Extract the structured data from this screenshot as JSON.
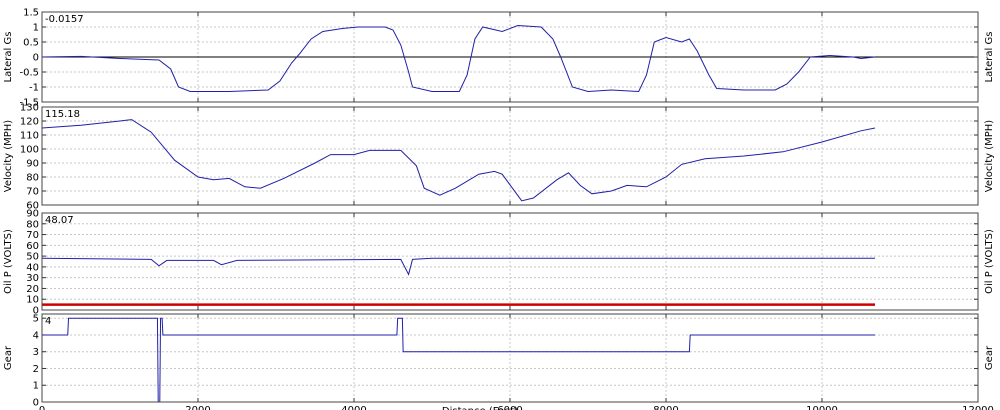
{
  "chart_data": [
    {
      "type": "line",
      "ylabel": "Lateral Gs",
      "readout": -0.0157,
      "xlim": [
        0,
        12000
      ],
      "xticks": [
        0,
        2000,
        4000,
        6000,
        8000,
        10000,
        12000
      ],
      "ylim": [
        -1.5,
        1.5
      ],
      "yticks": [
        -1.5,
        -1,
        -0.5,
        0,
        0.5,
        1,
        1.5
      ],
      "grid": true,
      "x": [
        0,
        500,
        1000,
        1500,
        1650,
        1750,
        1900,
        2400,
        2900,
        3050,
        3200,
        3300,
        3450,
        3600,
        3850,
        4050,
        4400,
        4500,
        4600,
        4700,
        4750,
        5000,
        5350,
        5450,
        5550,
        5650,
        5900,
        6100,
        6400,
        6550,
        6650,
        6800,
        7000,
        7300,
        7650,
        7750,
        7850,
        8000,
        8200,
        8300,
        8400,
        8550,
        8650,
        9000,
        9400,
        9550,
        9700,
        9850,
        10100,
        10400,
        10500,
        10680
      ],
      "series": [
        {
          "color": "#2020a8",
          "values": [
            0,
            0.02,
            -0.05,
            -0.1,
            -0.4,
            -1.0,
            -1.15,
            -1.15,
            -1.1,
            -0.8,
            -0.2,
            0.1,
            0.6,
            0.85,
            0.95,
            1.0,
            1.0,
            0.9,
            0.4,
            -0.5,
            -1.0,
            -1.15,
            -1.15,
            -0.6,
            0.6,
            1.0,
            0.85,
            1.05,
            1.0,
            0.6,
            0.0,
            -1.0,
            -1.15,
            -1.1,
            -1.15,
            -0.6,
            0.5,
            0.65,
            0.5,
            0.6,
            0.2,
            -0.6,
            -1.05,
            -1.1,
            -1.1,
            -0.9,
            -0.5,
            0.0,
            0.05,
            0.0,
            -0.05,
            0.0
          ]
        }
      ]
    },
    {
      "type": "line",
      "ylabel": "Velocity (MPH)",
      "readout": 115.18,
      "xlim": [
        0,
        12000
      ],
      "xticks": [
        0,
        2000,
        4000,
        6000,
        8000,
        10000,
        12000
      ],
      "ylim": [
        60,
        130
      ],
      "yticks": [
        60,
        70,
        80,
        90,
        100,
        110,
        120,
        130
      ],
      "grid": true,
      "x": [
        0,
        500,
        1000,
        1150,
        1400,
        1700,
        2000,
        2200,
        2400,
        2600,
        2800,
        3100,
        3500,
        3700,
        4000,
        4200,
        4600,
        4800,
        4900,
        5100,
        5300,
        5600,
        5800,
        5900,
        6150,
        6300,
        6600,
        6750,
        6900,
        7050,
        7300,
        7500,
        7750,
        8000,
        8200,
        8500,
        9000,
        9500,
        10000,
        10500,
        10680
      ],
      "series": [
        {
          "color": "#2020a8",
          "values": [
            115,
            117,
            120,
            121,
            112,
            92,
            80,
            78,
            79,
            73,
            72,
            79,
            90,
            96,
            96,
            99,
            99,
            88,
            72,
            67,
            72,
            82,
            84,
            82,
            63,
            65,
            78,
            83,
            74,
            68,
            70,
            74,
            73,
            80,
            89,
            93,
            95,
            98,
            105,
            113,
            115
          ]
        }
      ]
    },
    {
      "type": "line",
      "ylabel": "Oil P (VOLTS)",
      "readout": 48.07,
      "xlim": [
        0,
        12000
      ],
      "xticks": [
        0,
        2000,
        4000,
        6000,
        8000,
        10000,
        12000
      ],
      "ylim": [
        0,
        90
      ],
      "yticks": [
        0,
        10,
        20,
        30,
        40,
        50,
        60,
        70,
        80,
        90
      ],
      "grid": true,
      "x": [
        0,
        1400,
        1500,
        1600,
        2200,
        2300,
        2500,
        4600,
        4700,
        4750,
        5000,
        10680
      ],
      "series": [
        {
          "color": "#2020a8",
          "values": [
            48,
            47,
            41,
            46,
            46,
            42,
            46,
            47,
            33,
            47,
            48,
            48
          ]
        },
        {
          "color": "#cc0000",
          "values": [
            5,
            5,
            5,
            5,
            5,
            5,
            5,
            5,
            5,
            5,
            5,
            5
          ]
        }
      ]
    },
    {
      "type": "line",
      "ylabel": "Gear",
      "readout": 4,
      "xlabel": "Distance (Feet)",
      "xlim": [
        0,
        12000
      ],
      "xticks": [
        0,
        2000,
        4000,
        6000,
        8000,
        10000,
        12000
      ],
      "ylim": [
        0,
        5.25
      ],
      "yticks": [
        0,
        1,
        2,
        3,
        4,
        5
      ],
      "grid": true,
      "x": [
        0,
        330,
        340,
        1480,
        1490,
        1510,
        1520,
        1540,
        1550,
        4550,
        4560,
        4620,
        4630,
        8300,
        8310,
        10680
      ],
      "series": [
        {
          "color": "#2020a8",
          "values": [
            4,
            4,
            5,
            5,
            0,
            0,
            5,
            5,
            4,
            4,
            5,
            5,
            3,
            3,
            4,
            4
          ]
        }
      ]
    }
  ]
}
